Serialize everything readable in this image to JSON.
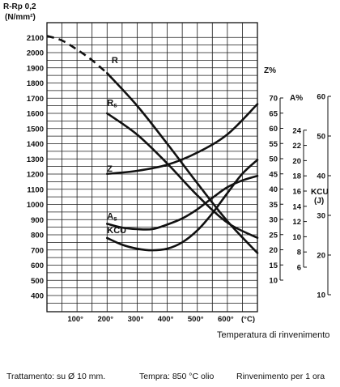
{
  "chart_data": {
    "type": "line",
    "left_axis": {
      "title": "R-Rp 0,2",
      "unit": "(N/mm²)",
      "ticks": [
        400,
        500,
        600,
        700,
        800,
        900,
        1000,
        1100,
        1200,
        1300,
        1400,
        1500,
        1600,
        1700,
        1800,
        1900,
        2000,
        2100
      ]
    },
    "right_axes": [
      {
        "title": "Z%",
        "ticks": [
          10,
          15,
          20,
          25,
          30,
          35,
          40,
          45,
          50,
          55,
          60,
          65,
          70
        ]
      },
      {
        "title": "A%",
        "ticks": [
          6,
          8,
          10,
          12,
          14,
          16,
          18,
          20,
          22,
          24
        ]
      },
      {
        "title": "KCU",
        "unit": "(J)",
        "ticks": [
          10,
          20,
          30,
          40,
          50,
          60
        ]
      }
    ],
    "x_axis": {
      "ticks": [
        "100°",
        "200°",
        "300°",
        "400°",
        "500°",
        "600°"
      ],
      "unit": "(°C)",
      "label": "Temperatura di rinvenimento"
    },
    "series": [
      {
        "name": "R",
        "axis": "left",
        "x": [
          0,
          50,
          100,
          150,
          200,
          300,
          400,
          500,
          600,
          700
        ],
        "y": [
          2110,
          2080,
          2020,
          1950,
          1865,
          1650,
          1400,
          1140,
          890,
          680
        ]
      },
      {
        "name": "Rs",
        "axis": "left",
        "x": [
          200,
          300,
          400,
          500,
          600,
          700
        ],
        "y": [
          1600,
          1460,
          1270,
          1060,
          880,
          780
        ]
      },
      {
        "name": "Z",
        "axis": "Z%",
        "x": [
          200,
          300,
          400,
          500,
          600,
          700
        ],
        "y": [
          45,
          46,
          48,
          52,
          58,
          68
        ]
      },
      {
        "name": "As",
        "axis": "A%",
        "x": [
          200,
          250,
          300,
          350,
          400,
          450,
          500,
          550,
          600,
          650,
          700
        ],
        "y": [
          11.7,
          11.2,
          11.0,
          11.0,
          11.6,
          12.4,
          13.6,
          15.1,
          16.5,
          17.4,
          18.0
        ]
      },
      {
        "name": "KCU",
        "axis": "KCU",
        "x": [
          200,
          250,
          300,
          350,
          400,
          450,
          500,
          550,
          600,
          650,
          700
        ],
        "y": [
          24.3,
          22.6,
          21.6,
          21.2,
          21.6,
          23.2,
          26.2,
          30.5,
          35.6,
          40.5,
          44.0
        ]
      }
    ]
  },
  "footer": {
    "treatment": "Trattamento: su Ø 10 mm.",
    "quench": "Tempra: 850 °C olio",
    "temper": "Rinvenimento per 1 ora"
  }
}
